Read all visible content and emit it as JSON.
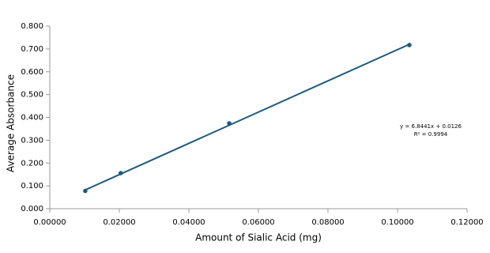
{
  "chart_data": {
    "type": "scatter",
    "x_label": "Amount of Sialic Acid (mg)",
    "y_label": "Average Absorbance",
    "series": [
      {
        "name": "Average Absorbance",
        "color": "#1f5a7e",
        "x": [
          0.0102,
          0.0204,
          0.0516,
          0.1034
        ],
        "values": [
          0.078,
          0.156,
          0.374,
          0.717
        ]
      }
    ],
    "trendline": {
      "color": "#1f5a7e",
      "equation": "y = 6.8441x + 0.0126",
      "r_squared": "R² = 0.9994",
      "x": [
        0.0102,
        0.1034
      ],
      "values": [
        0.0824,
        0.7203
      ]
    },
    "xlim": [
      0,
      0.12
    ],
    "xticks": [
      {
        "value": 0,
        "label": "0.00000"
      },
      {
        "value": 0.02,
        "label": "0.02000"
      },
      {
        "value": 0.04,
        "label": "0.04000"
      },
      {
        "value": 0.06,
        "label": "0.06000"
      },
      {
        "value": 0.08,
        "label": "0.08000"
      },
      {
        "value": 0.1,
        "label": "0.10000"
      },
      {
        "value": 0.12,
        "label": "0.12000"
      }
    ],
    "ylim": [
      0,
      0.8
    ],
    "yticks": [
      {
        "value": 0,
        "label": "0.000"
      },
      {
        "value": 0.1,
        "label": "0.100"
      },
      {
        "value": 0.2,
        "label": "0.200"
      },
      {
        "value": 0.3,
        "label": "0.300"
      },
      {
        "value": 0.4,
        "label": "0.400"
      },
      {
        "value": 0.5,
        "label": "0.500"
      },
      {
        "value": 0.6,
        "label": "0.600"
      },
      {
        "value": 0.7,
        "label": "0.700"
      },
      {
        "value": 0.8,
        "label": "0.800"
      }
    ],
    "grid": false
  }
}
